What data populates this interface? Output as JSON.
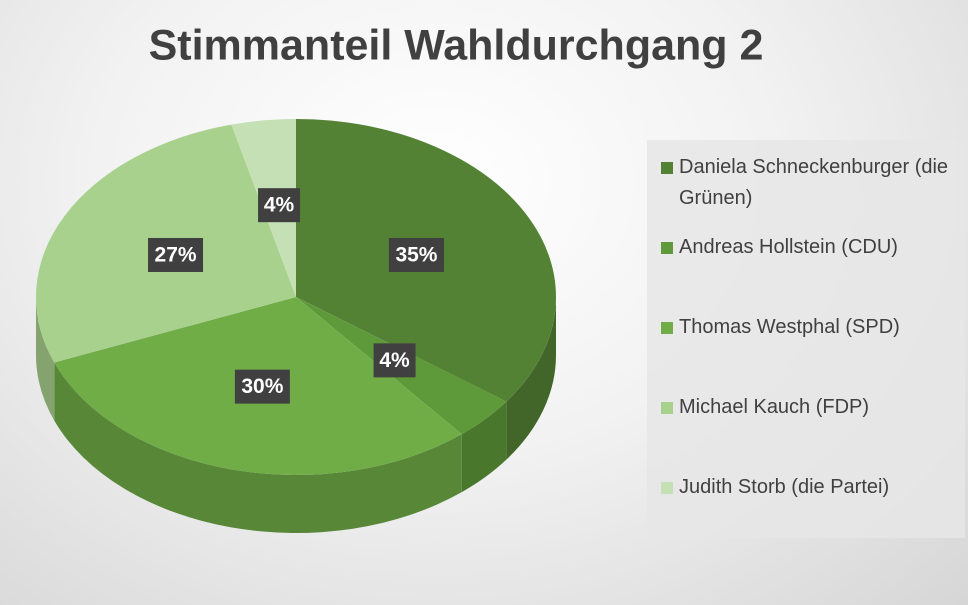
{
  "chart_data": {
    "type": "pie",
    "title": "Stimmanteil Wahldurchgang 2",
    "categories": [
      "Daniela Schneckenburger (die Grünen)",
      "Andreas Hollstein (CDU)",
      "Thomas Westphal (SPD)",
      "Michael Kauch (FDP)",
      "Judith Storb (die Partei)"
    ],
    "values": [
      35,
      4,
      30,
      27,
      4
    ],
    "value_labels": [
      "35%",
      "4%",
      "30%",
      "27%",
      "4%"
    ],
    "colors": [
      "#548235",
      "#5e9a3a",
      "#70ad47",
      "#a9d18e",
      "#c5e0b4"
    ],
    "legend": "right"
  }
}
